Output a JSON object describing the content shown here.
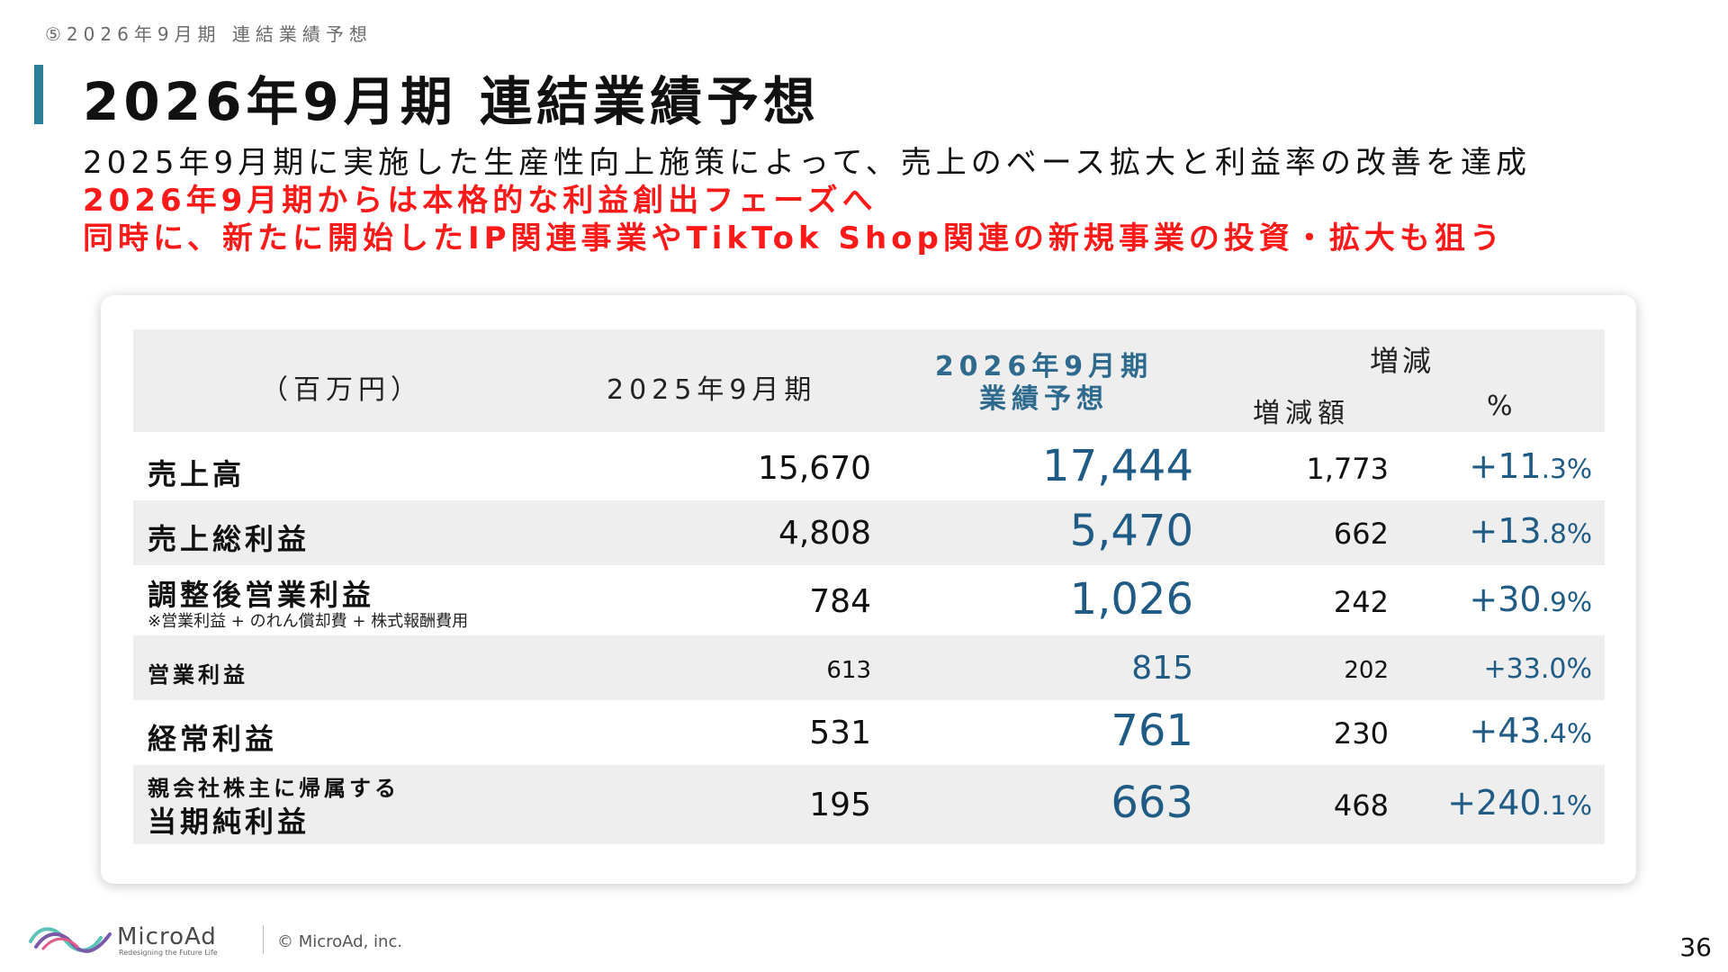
{
  "breadcrumb": "⑤2026年9月期 連結業績予想",
  "page_title": "2026年9月期 連結業績予想",
  "lead": {
    "line1": "2025年9月期に実施した生産性向上施策によって、売上のベース拡大と利益率の改善を達成",
    "line2": "2026年9月期からは本格的な利益創出フェーズへ",
    "line3": "同時に、新たに開始したIP関連事業やTikTok Shop関連の新規事業の投資・拡大も狙う"
  },
  "table": {
    "headers": {
      "unit": "（百万円）",
      "fy2025": "2025年9月期",
      "fy2026_line1": "2026年9月期",
      "fy2026_line2": "業績予想",
      "change": "増減",
      "change_amount": "増減額",
      "change_pct": "%"
    },
    "rows": [
      {
        "label": "売上高",
        "fy2025": "15,670",
        "fy2026": "17,444",
        "change": "1,773",
        "pct_int": "+11",
        "pct_dec": ".3%"
      },
      {
        "label": "売上総利益",
        "fy2025": "4,808",
        "fy2026": "5,470",
        "change": "662",
        "pct_int": "+13",
        "pct_dec": ".8%"
      },
      {
        "label": "調整後営業利益",
        "note": "※営業利益 + のれん償却費 + 株式報酬費用",
        "fy2025": "784",
        "fy2026": "1,026",
        "change": "242",
        "pct_int": "+30",
        "pct_dec": ".9%"
      },
      {
        "label": "営業利益",
        "fy2025": "613",
        "fy2026": "815",
        "change": "202",
        "pct": "+33.0%"
      },
      {
        "label": "経常利益",
        "fy2025": "531",
        "fy2026": "761",
        "change": "230",
        "pct_int": "+43",
        "pct_dec": ".4%"
      },
      {
        "label_line1": "親会社株主に帰属する",
        "label_line2": "当期純利益",
        "fy2025": "195",
        "fy2026": "663",
        "change": "468",
        "pct_int": "+240",
        "pct_dec": ".1%"
      }
    ]
  },
  "footer": {
    "brand": "MicroAd",
    "tagline": "Redesigning the Future Life",
    "copyright": "© MicroAd, inc.",
    "page_number": "36"
  }
}
